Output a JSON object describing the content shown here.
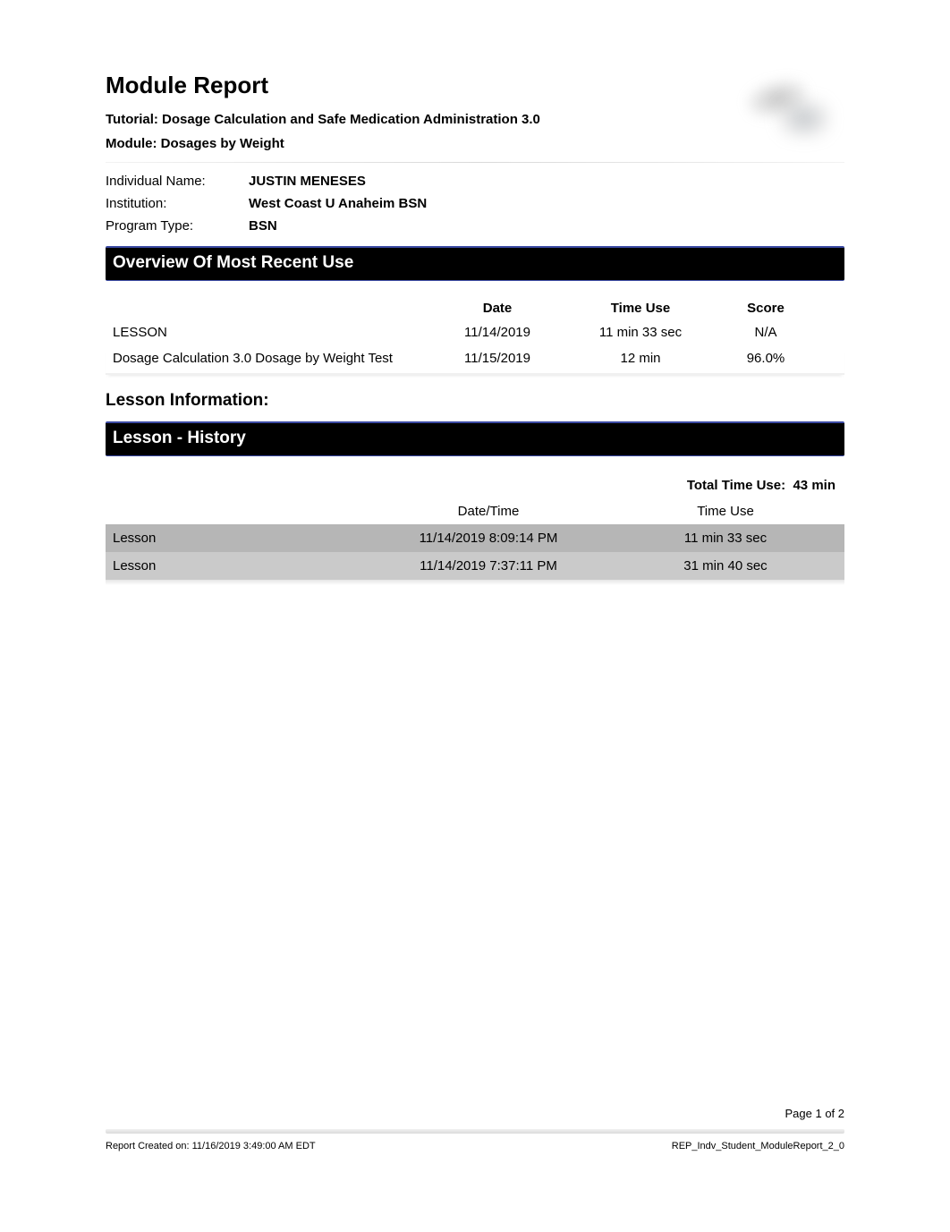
{
  "title": "Module Report",
  "subtitle_tutorial": "Tutorial: Dosage Calculation and Safe Medication Administration 3.0",
  "subtitle_module": "Module: Dosages by Weight",
  "meta": {
    "individual_name_label": "Individual Name:",
    "individual_name_value": "JUSTIN MENESES",
    "institution_label": "Institution:",
    "institution_value": "West Coast U Anaheim BSN",
    "program_type_label": "Program Type:",
    "program_type_value": "BSN"
  },
  "overview": {
    "section_title": "Overview Of Most Recent Use",
    "headers": {
      "date": "Date",
      "time_use": "Time Use",
      "score": "Score"
    },
    "rows": [
      {
        "name": "LESSON",
        "date": "11/14/2019",
        "time_use": "11 min 33 sec",
        "score": "N/A"
      },
      {
        "name": "Dosage Calculation 3.0 Dosage by Weight Test",
        "date": "11/15/2019",
        "time_use": "12 min",
        "score": "96.0%"
      }
    ]
  },
  "lesson_info_heading": "Lesson Information:",
  "history": {
    "section_title": "Lesson - History",
    "total_time_label": "Total Time Use:",
    "total_time_value": "43 min",
    "headers": {
      "datetime": "Date/Time",
      "time_use": "Time Use"
    },
    "rows": [
      {
        "name": "Lesson",
        "datetime": "11/14/2019 8:09:14 PM",
        "time_use": "11 min 33 sec",
        "shade": "shade1"
      },
      {
        "name": "Lesson",
        "datetime": "11/14/2019 7:37:11 PM",
        "time_use": "31 min 40 sec",
        "shade": "shade2"
      }
    ]
  },
  "footer": {
    "page_num": "Page 1 of 2",
    "created_on": "Report Created on: 11/16/2019 3:49:00 AM EDT",
    "report_id": "REP_Indv_Student_ModuleReport_2_0"
  },
  "colors": {
    "section_bar_bg": "#000000",
    "section_bar_text": "#ffffff",
    "section_bar_accent": "#3b4aa3",
    "row_shade1": "#b6b6b6",
    "row_shade2": "#cacaca"
  }
}
